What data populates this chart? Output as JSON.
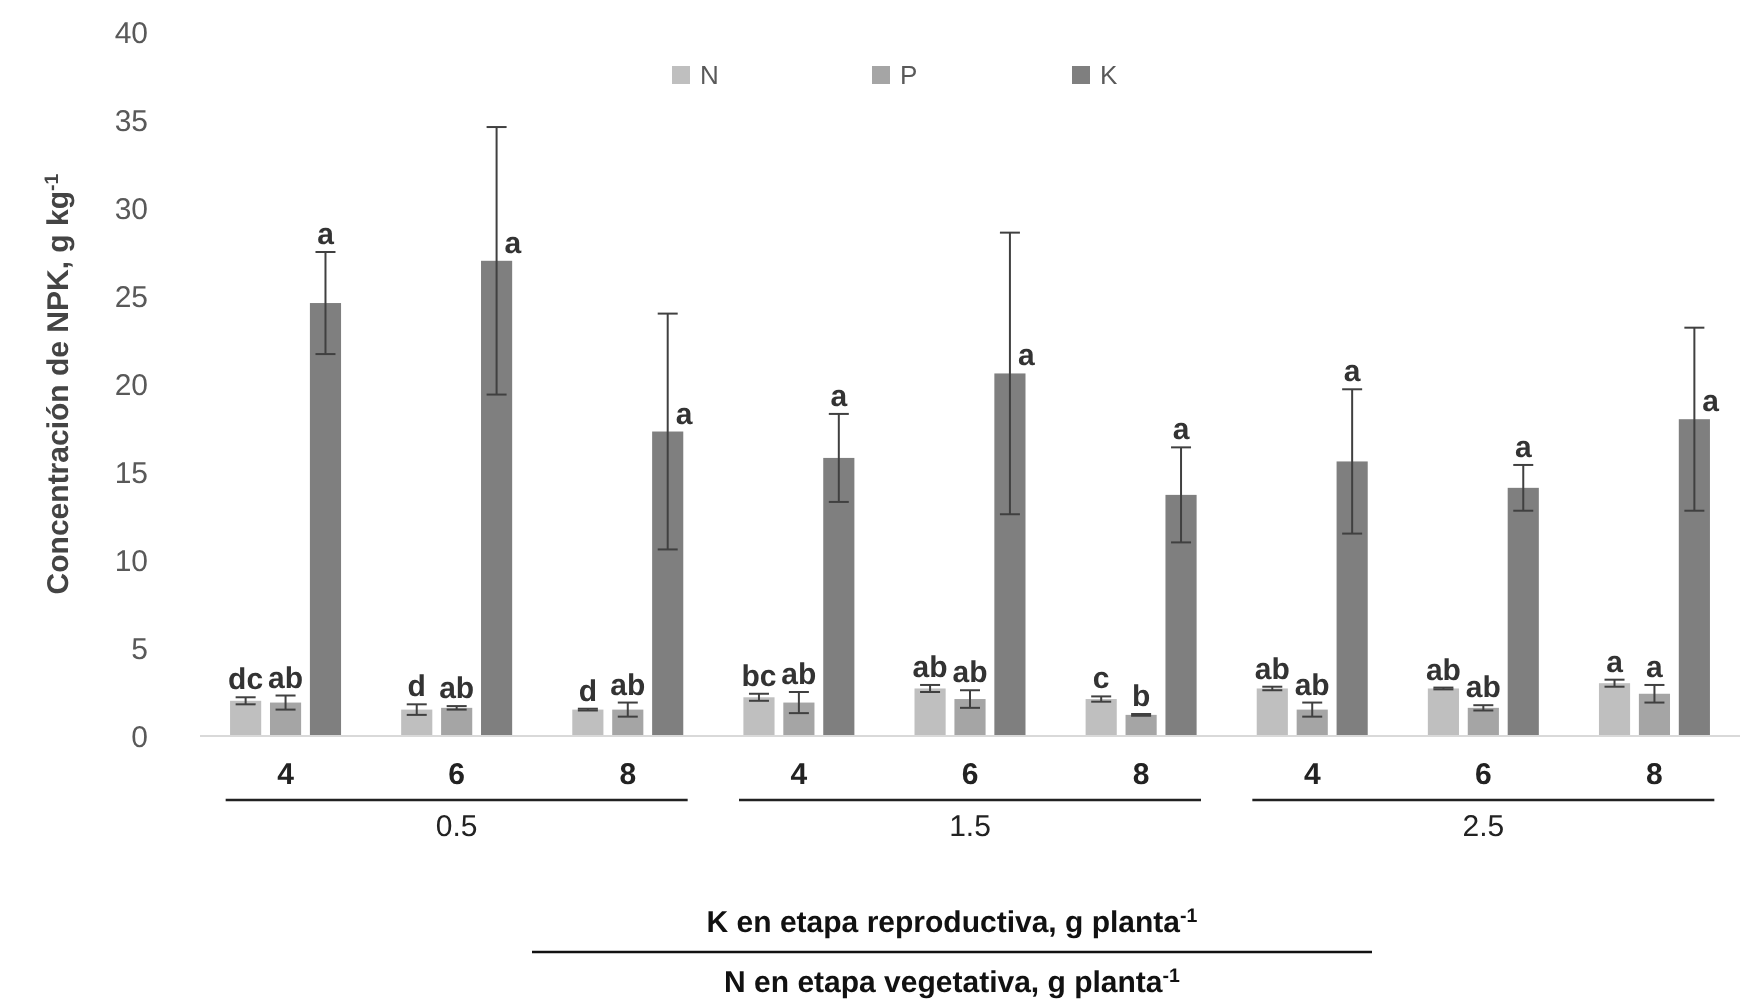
{
  "chart_data": {
    "type": "bar",
    "ylabel": "Concentración de NPK, g kg$^{-1}$",
    "xlabel": "K en etapa reproductiva, g planta$^{-1}$",
    "annotations": [
      "0.5",
      "1.5",
      "2.5",
      "N en etapa vegetativa, g planta$^{-1}$"
    ],
    "categories": [
      "4",
      "6",
      "8",
      "4",
      "6",
      "8",
      "4",
      "6",
      "8"
    ],
    "series": [
      {
        "name": "N",
        "color": "#bfbfbf",
        "values": [
          2.0,
          1.5,
          1.5,
          2.2,
          2.7,
          2.1,
          2.7,
          2.7,
          3.0
        ],
        "errors": [
          0.2,
          0.3,
          0.05,
          0.2,
          0.2,
          0.15,
          0.1,
          0.05,
          0.2
        ],
        "value_labels": [
          "dc",
          "d",
          "d",
          "bc",
          "ab",
          "c",
          "ab",
          "ab",
          "a"
        ]
      },
      {
        "name": "P",
        "color": "#a5a5a5",
        "values": [
          1.9,
          1.6,
          1.5,
          1.9,
          2.1,
          1.2,
          1.5,
          1.6,
          2.4
        ],
        "errors": [
          0.4,
          0.1,
          0.4,
          0.6,
          0.5,
          0.05,
          0.4,
          0.15,
          0.5
        ],
        "value_labels": [
          "ab",
          "ab",
          "ab",
          "ab",
          "ab",
          "b",
          "ab",
          "ab",
          "a"
        ]
      },
      {
        "name": "K",
        "color": "#7f7f7f",
        "values": [
          24.6,
          27.0,
          17.3,
          15.8,
          20.6,
          13.7,
          15.6,
          14.1,
          18.0
        ],
        "errors": [
          2.9,
          7.6,
          6.7,
          2.5,
          8.0,
          2.7,
          4.1,
          1.3,
          5.2
        ],
        "value_labels": [
          "a",
          "a",
          "a",
          "a",
          "a",
          "a",
          "a",
          "a",
          "a"
        ]
      }
    ],
    "ylim": [
      0,
      40
    ],
    "yticks": [
      0,
      5,
      10,
      15,
      20,
      25,
      30,
      35,
      40
    ],
    "legend": "top"
  }
}
